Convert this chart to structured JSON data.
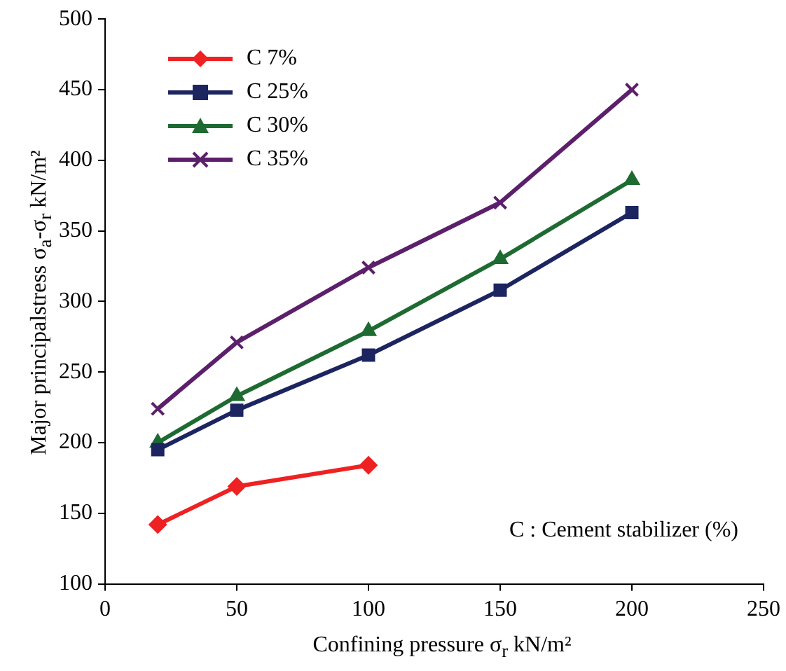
{
  "chart_data": {
    "type": "line",
    "xlabel": "Confining pressure  σ$_{r}$  kN/m²",
    "ylabel": "Major principalstress  σ$_{a}$-σ$_{r}$  kN/m²",
    "xlim": [
      0,
      250
    ],
    "xticks": [
      0,
      50,
      100,
      150,
      200,
      250
    ],
    "ylim": [
      100,
      500
    ],
    "yticks": [
      100,
      150,
      200,
      250,
      300,
      350,
      400,
      450,
      500
    ],
    "grid": false,
    "legend": "top left",
    "line_style": "solid",
    "annotations": [
      "C : Cement stabilizer (%)"
    ],
    "series": [
      {
        "name": "C 7%",
        "color": "#ee2222",
        "marker": "diamond",
        "x": [
          20,
          50,
          100
        ],
        "values": [
          142,
          169,
          184
        ]
      },
      {
        "name": "C 25%",
        "color": "#1c2560",
        "marker": "square",
        "x": [
          20,
          50,
          100,
          150,
          200
        ],
        "values": [
          195,
          223,
          262,
          308,
          363
        ]
      },
      {
        "name": "C 30%",
        "color": "#1e6b32",
        "marker": "triangle",
        "x": [
          20,
          50,
          100,
          150,
          200
        ],
        "values": [
          200,
          233,
          279,
          330,
          386
        ]
      },
      {
        "name": "C 35%",
        "color": "#5c1f6b",
        "marker": "cross",
        "x": [
          20,
          50,
          100,
          150,
          200
        ],
        "values": [
          224,
          271,
          324,
          370,
          450
        ]
      }
    ]
  }
}
